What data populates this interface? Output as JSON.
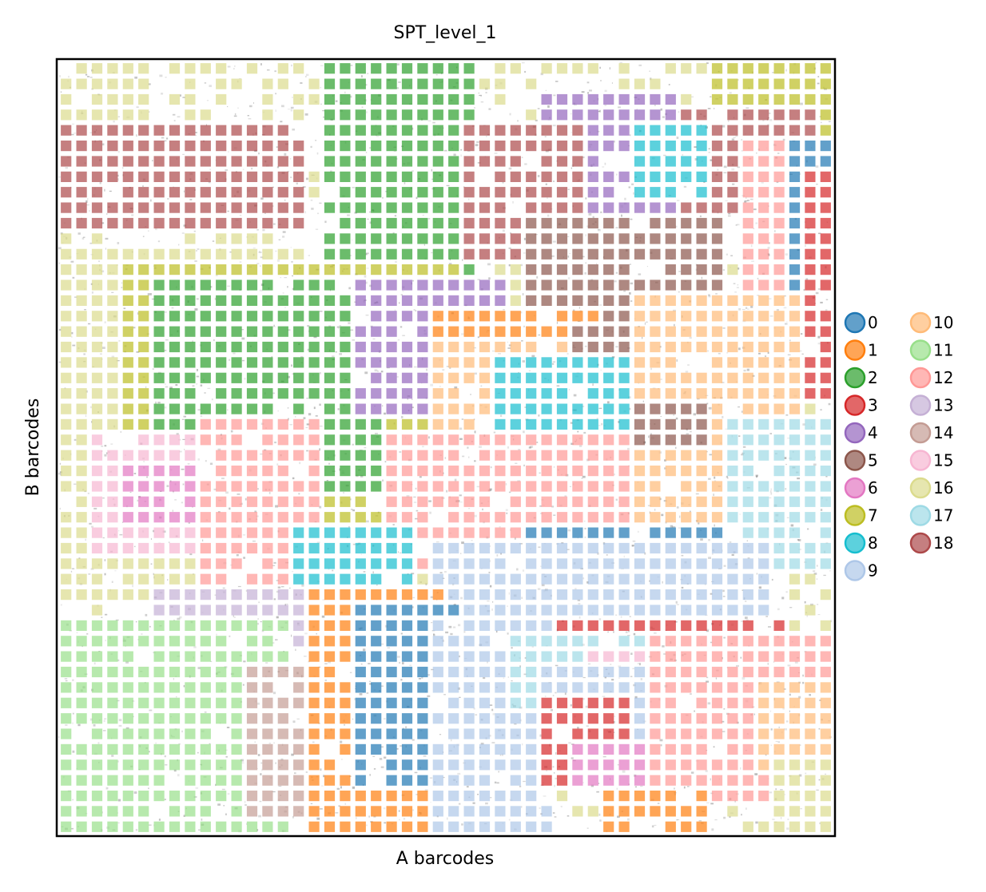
{
  "chart_data": {
    "type": "heatmap",
    "title": "SPT_level_1",
    "xlabel": "A barcodes",
    "ylabel": "B barcodes",
    "grid": false,
    "xticks": [],
    "yticks": [],
    "legend_position": "right",
    "legend_columns": 2,
    "grid_size": [
      50,
      50
    ],
    "legend": [
      {
        "label": "0",
        "color": "#1f77b4"
      },
      {
        "label": "1",
        "color": "#ff7f0e"
      },
      {
        "label": "2",
        "color": "#2ca02c"
      },
      {
        "label": "3",
        "color": "#d62728"
      },
      {
        "label": "4",
        "color": "#9467bd"
      },
      {
        "label": "5",
        "color": "#8c564b"
      },
      {
        "label": "6",
        "color": "#e377c2"
      },
      {
        "label": "7",
        "color": "#bcbd22"
      },
      {
        "label": "8",
        "color": "#17becf"
      },
      {
        "label": "9",
        "color": "#aec7e8"
      },
      {
        "label": "10",
        "color": "#ffbb78"
      },
      {
        "label": "11",
        "color": "#98df8a"
      },
      {
        "label": "12",
        "color": "#ff9896"
      },
      {
        "label": "13",
        "color": "#c5b0d5"
      },
      {
        "label": "14",
        "color": "#c49c94"
      },
      {
        "label": "15",
        "color": "#f7b6d2"
      },
      {
        "label": "16",
        "color": "#dbdb8d"
      },
      {
        "label": "17",
        "color": "#9edae5"
      },
      {
        "label": "18",
        "color": "#ad494a"
      }
    ],
    "regions": [
      {
        "cluster": "16",
        "x": [
          0,
          5
        ],
        "y": [
          0,
          5
        ]
      },
      {
        "cluster": "18",
        "x": [
          0,
          15
        ],
        "y": [
          4,
          10
        ]
      },
      {
        "cluster": "2",
        "x": [
          17,
          26
        ],
        "y": [
          0,
          13
        ]
      },
      {
        "cluster": "4",
        "x": [
          31,
          39
        ],
        "y": [
          2,
          14
        ]
      },
      {
        "cluster": "18",
        "x": [
          26,
          33
        ],
        "y": [
          4,
          12
        ]
      },
      {
        "cluster": "7",
        "x": [
          42,
          49
        ],
        "y": [
          0,
          7
        ]
      },
      {
        "cluster": "18",
        "x": [
          40,
          48
        ],
        "y": [
          3,
          9
        ]
      },
      {
        "cluster": "12",
        "x": [
          44,
          49
        ],
        "y": [
          5,
          14
        ]
      },
      {
        "cluster": "0",
        "x": [
          47,
          49
        ],
        "y": [
          5,
          15
        ]
      },
      {
        "cluster": "8",
        "x": [
          37,
          41
        ],
        "y": [
          4,
          8
        ]
      },
      {
        "cluster": "5",
        "x": [
          30,
          42
        ],
        "y": [
          10,
          16
        ]
      },
      {
        "cluster": "3",
        "x": [
          48,
          49
        ],
        "y": [
          7,
          21
        ]
      },
      {
        "cluster": "16",
        "x": [
          0,
          14
        ],
        "y": [
          12,
          34
        ]
      },
      {
        "cluster": "7",
        "x": [
          4,
          25
        ],
        "y": [
          13,
          30
        ]
      },
      {
        "cluster": "2",
        "x": [
          6,
          20
        ],
        "y": [
          14,
          27
        ]
      },
      {
        "cluster": "4",
        "x": [
          19,
          28
        ],
        "y": [
          14,
          22
        ]
      },
      {
        "cluster": "1",
        "x": [
          24,
          34
        ],
        "y": [
          16,
          21
        ]
      },
      {
        "cluster": "10",
        "x": [
          24,
          47
        ],
        "y": [
          18,
          30
        ]
      },
      {
        "cluster": "5",
        "x": [
          33,
          41
        ],
        "y": [
          17,
          24
        ]
      },
      {
        "cluster": "10",
        "x": [
          37,
          47
        ],
        "y": [
          15,
          21
        ]
      },
      {
        "cluster": "8",
        "x": [
          28,
          36
        ],
        "y": [
          19,
          23
        ]
      },
      {
        "cluster": "17",
        "x": [
          43,
          49
        ],
        "y": [
          23,
          32
        ]
      },
      {
        "cluster": "15",
        "x": [
          2,
          8
        ],
        "y": [
          24,
          31
        ]
      },
      {
        "cluster": "6",
        "x": [
          4,
          8
        ],
        "y": [
          26,
          29
        ]
      },
      {
        "cluster": "12",
        "x": [
          9,
          16
        ],
        "y": [
          23,
          34
        ]
      },
      {
        "cluster": "12",
        "x": [
          21,
          36
        ],
        "y": [
          24,
          32
        ]
      },
      {
        "cluster": "8",
        "x": [
          15,
          22
        ],
        "y": [
          30,
          34
        ]
      },
      {
        "cluster": "0",
        "x": [
          30,
          42
        ],
        "y": [
          30,
          32
        ]
      },
      {
        "cluster": "9",
        "x": [
          24,
          45
        ],
        "y": [
          31,
          36
        ]
      },
      {
        "cluster": "3",
        "x": [
          28,
          46
        ],
        "y": [
          36,
          37
        ]
      },
      {
        "cluster": "13",
        "x": [
          6,
          15
        ],
        "y": [
          34,
          37
        ]
      },
      {
        "cluster": "11",
        "x": [
          0,
          14
        ],
        "y": [
          36,
          49
        ]
      },
      {
        "cluster": "14",
        "x": [
          12,
          17
        ],
        "y": [
          39,
          48
        ]
      },
      {
        "cluster": "1",
        "x": [
          16,
          24
        ],
        "y": [
          34,
          49
        ]
      },
      {
        "cluster": "0",
        "x": [
          19,
          25
        ],
        "y": [
          35,
          46
        ]
      },
      {
        "cluster": "9",
        "x": [
          24,
          31
        ],
        "y": [
          36,
          49
        ]
      },
      {
        "cluster": "17",
        "x": [
          29,
          39
        ],
        "y": [
          37,
          41
        ]
      },
      {
        "cluster": "15",
        "x": [
          34,
          44
        ],
        "y": [
          38,
          45
        ]
      },
      {
        "cluster": "9",
        "x": [
          31,
          38
        ],
        "y": [
          39,
          44
        ]
      },
      {
        "cluster": "3",
        "x": [
          31,
          36
        ],
        "y": [
          41,
          46
        ]
      },
      {
        "cluster": "6",
        "x": [
          33,
          38
        ],
        "y": [
          44,
          46
        ]
      },
      {
        "cluster": "12",
        "x": [
          38,
          49
        ],
        "y": [
          37,
          47
        ]
      },
      {
        "cluster": "10",
        "x": [
          45,
          49
        ],
        "y": [
          40,
          45
        ]
      },
      {
        "cluster": "1",
        "x": [
          35,
          41
        ],
        "y": [
          47,
          49
        ]
      },
      {
        "cluster": "16",
        "x": [
          46,
          49
        ],
        "y": [
          45,
          49
        ]
      }
    ]
  }
}
